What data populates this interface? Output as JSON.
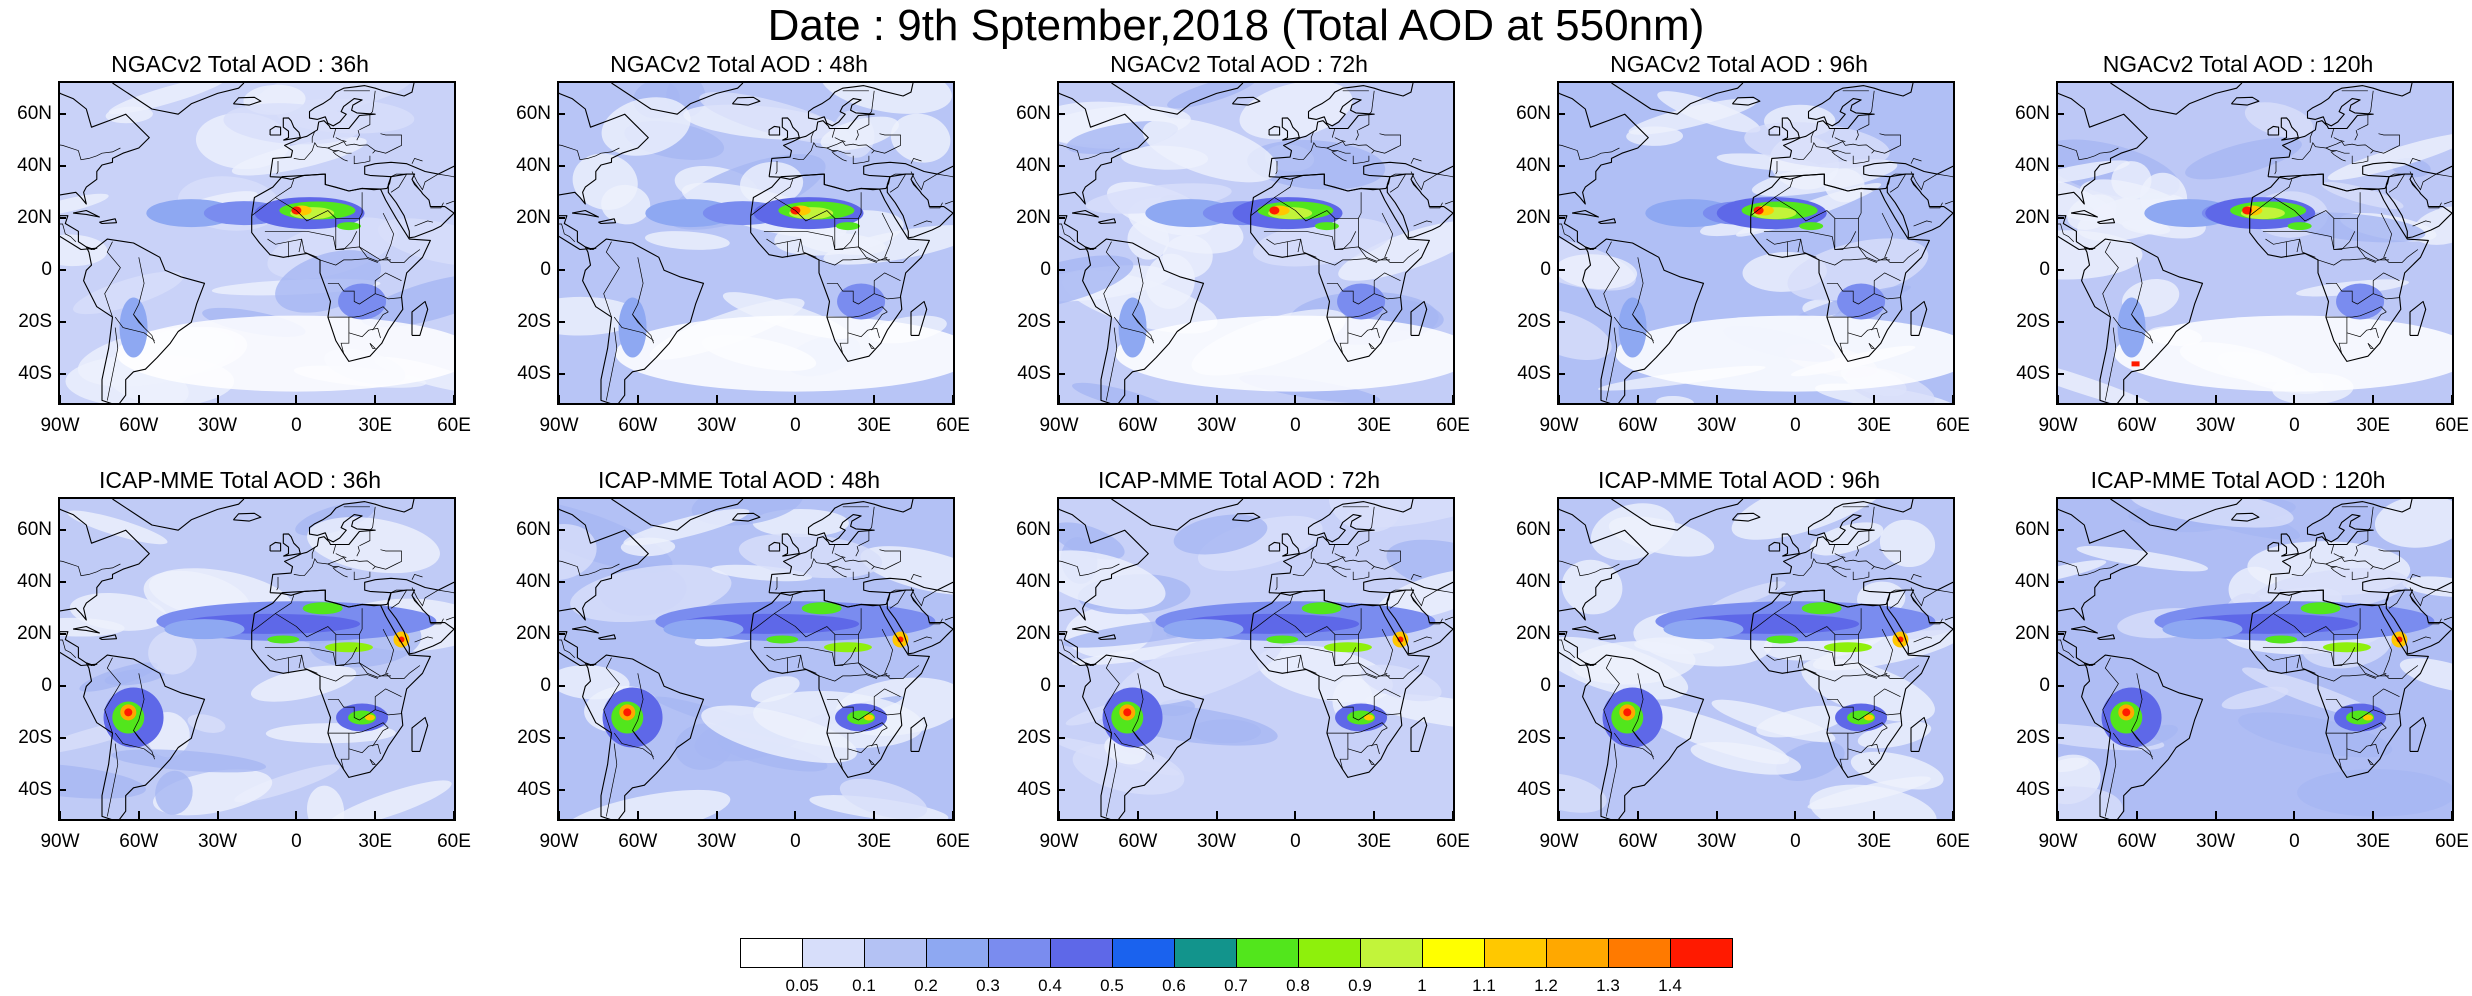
{
  "main_title": "Date : 9th Sptember,2018 (Total AOD at 550nm)",
  "lat_labels": [
    "60N",
    "40N",
    "20N",
    "0",
    "20S",
    "40S"
  ],
  "lon_labels": [
    "90W",
    "60W",
    "30W",
    "0",
    "30E",
    "60E"
  ],
  "panels": [
    {
      "title": "NGACv2 Total AOD : 36h"
    },
    {
      "title": "NGACv2 Total AOD : 48h"
    },
    {
      "title": "NGACv2 Total AOD : 72h"
    },
    {
      "title": "NGACv2 Total AOD : 96h"
    },
    {
      "title": "NGACv2 Total AOD : 120h"
    },
    {
      "title": "ICAP-MME Total AOD : 36h"
    },
    {
      "title": "ICAP-MME Total AOD : 48h"
    },
    {
      "title": "ICAP-MME Total AOD : 72h"
    },
    {
      "title": "ICAP-MME Total AOD : 96h"
    },
    {
      "title": "ICAP-MME Total AOD : 120h"
    }
  ],
  "colorbar": {
    "labels": [
      "0.05",
      "0.1",
      "0.2",
      "0.3",
      "0.4",
      "0.5",
      "0.6",
      "0.7",
      "0.8",
      "0.9",
      "1",
      "1.1",
      "1.2",
      "1.3",
      "1.4"
    ],
    "colors": [
      "#ffffff",
      "#d7defa",
      "#b4c2f4",
      "#8ea8f2",
      "#7a8cef",
      "#5e68e8",
      "#1a62ee",
      "#12948c",
      "#52e61c",
      "#8ef00c",
      "#c2f43a",
      "#ffff00",
      "#ffc800",
      "#ffa800",
      "#ff7a00",
      "#ff1a00"
    ]
  }
}
